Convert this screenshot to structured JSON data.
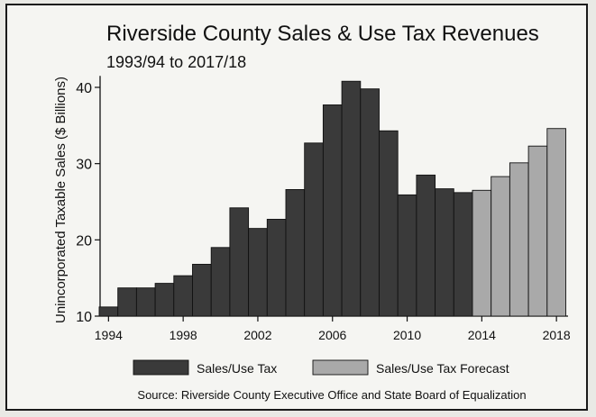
{
  "chart_data": {
    "type": "bar",
    "title": "Riverside County Sales & Use Tax Revenues",
    "subtitle": "1993/94 to 2017/18",
    "ylabel": "Unincorporated Taxable Sales ($ Billions)",
    "xlabel": "",
    "ylim": [
      10,
      42
    ],
    "yticks": [
      10,
      20,
      30,
      40
    ],
    "xticks": [
      1994,
      1998,
      2002,
      2006,
      2010,
      2014,
      2018
    ],
    "grid": false,
    "source": "Source: Riverside County Executive Office and State Board of Equalization",
    "categories": [
      1994,
      1995,
      1996,
      1997,
      1998,
      1999,
      2000,
      2001,
      2002,
      2003,
      2004,
      2005,
      2006,
      2007,
      2008,
      2009,
      2010,
      2011,
      2012,
      2013,
      2014,
      2015,
      2016,
      2017,
      2018
    ],
    "series": [
      {
        "name": "Sales/Use Tax",
        "color": "#3a3a3a",
        "values": [
          11.2,
          13.7,
          13.7,
          14.3,
          15.3,
          16.8,
          19.0,
          24.2,
          21.5,
          22.7,
          26.6,
          32.7,
          37.7,
          40.8,
          39.8,
          34.3,
          25.9,
          28.5,
          26.7,
          26.2,
          null,
          null,
          null,
          null,
          null
        ]
      },
      {
        "name": "Sales/Use Tax Forecast",
        "color": "#a9a9a9",
        "values": [
          null,
          null,
          null,
          null,
          null,
          null,
          null,
          null,
          null,
          null,
          null,
          null,
          null,
          null,
          null,
          null,
          null,
          null,
          null,
          null,
          26.5,
          28.3,
          30.1,
          32.3,
          34.6
        ]
      }
    ]
  }
}
